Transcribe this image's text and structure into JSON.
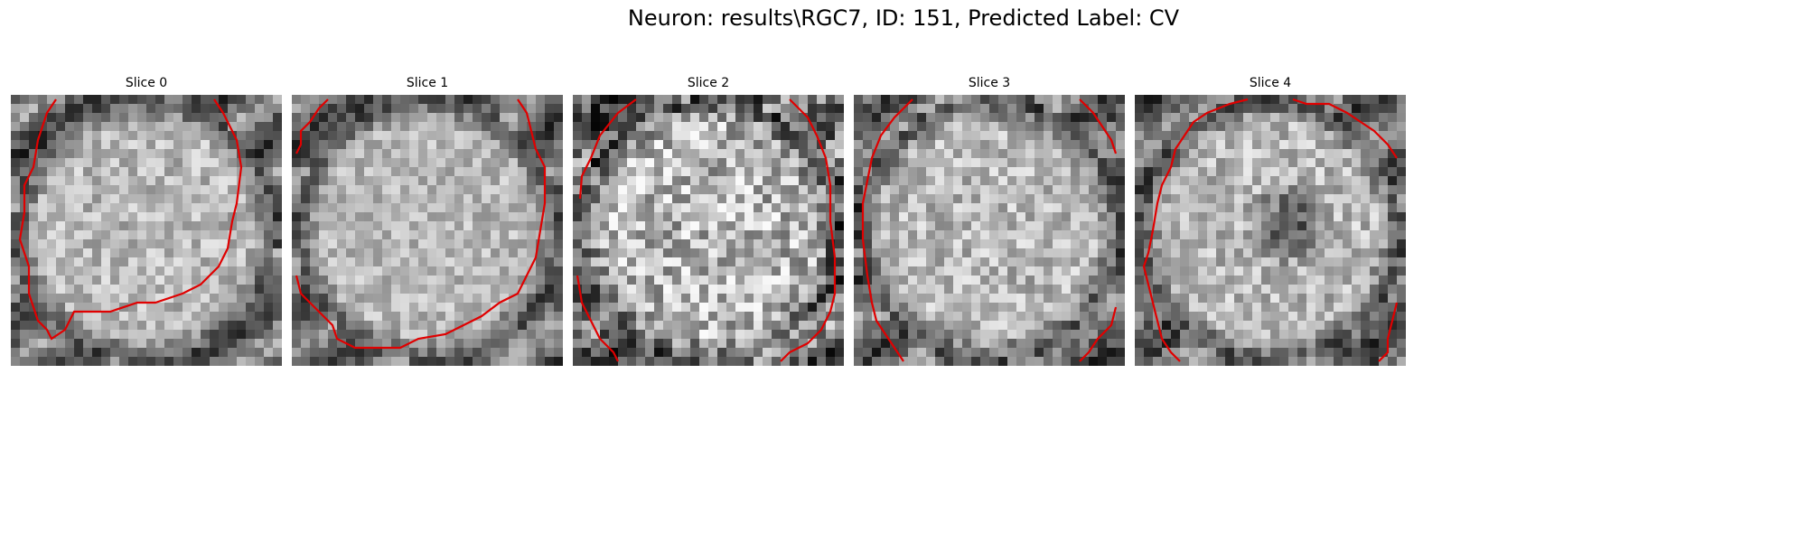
{
  "figure": {
    "title": "Neuron: results\\RGC7, ID: 151, Predicted Label: CV"
  },
  "panels": [
    {
      "title": "Slice 0",
      "seed": 11,
      "dark_center": false,
      "noise": 0.18
    },
    {
      "title": "Slice 1",
      "seed": 23,
      "dark_center": false,
      "noise": 0.16
    },
    {
      "title": "Slice 2",
      "seed": 37,
      "dark_center": false,
      "noise": 0.3
    },
    {
      "title": "Slice 3",
      "seed": 41,
      "dark_center": false,
      "noise": 0.2
    },
    {
      "title": "Slice 4",
      "seed": 53,
      "dark_center": true,
      "noise": 0.2
    }
  ],
  "colors": {
    "contour": "#e00000",
    "background": "#ffffff"
  },
  "image_description": "Five grayscale microscopy slices of a round neuron cell body, each overlaid with a red segmentation contour"
}
